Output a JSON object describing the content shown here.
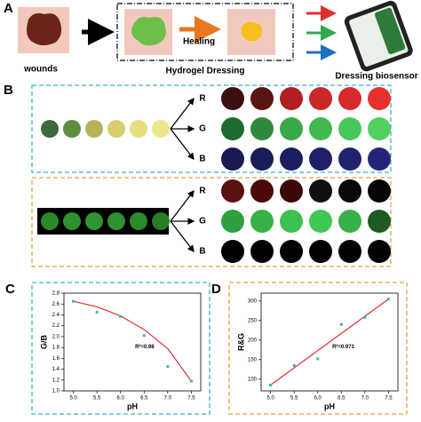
{
  "panel_a": {
    "label": "A",
    "wounds": "wounds",
    "hydrogel": "Hydrogel Dressing",
    "healing": "Healing",
    "biosensor": "Dressing biosensor"
  },
  "panel_b": {
    "label": "B",
    "top": {
      "vials": [
        "#3c6a3a",
        "#5f8c3e",
        "#b7b35a",
        "#d6cf6a",
        "#e5df80",
        "#ece78c"
      ],
      "rows": [
        {
          "label": "R",
          "colors": [
            "#3a1010",
            "#5a1414",
            "#b02020",
            "#c82828",
            "#d82a2a",
            "#e83030"
          ]
        },
        {
          "label": "G",
          "colors": [
            "#1e6a2e",
            "#2e8a3a",
            "#38a848",
            "#40b850",
            "#48c858",
            "#50d060"
          ]
        },
        {
          "label": "B",
          "colors": [
            "#181a50",
            "#1a1c58",
            "#1c1e60",
            "#1e2068",
            "#202270",
            "#242478"
          ]
        }
      ]
    },
    "bottom": {
      "vials": [
        "#2a8a2a",
        "#2e902e",
        "#309430",
        "#2e902e",
        "#2c8c2c",
        "#287e28"
      ],
      "rows": [
        {
          "label": "R",
          "colors": [
            "#5a1010",
            "#4a0a0a",
            "#3a0808",
            "#101010",
            "#080808",
            "#050505"
          ]
        },
        {
          "label": "G",
          "colors": [
            "#2ea040",
            "#38b048",
            "#3cc050",
            "#40c854",
            "#38b048",
            "#1e5a24"
          ]
        },
        {
          "label": "B",
          "colors": [
            "#000000",
            "#000000",
            "#000000",
            "#000000",
            "#000000",
            "#000000"
          ]
        }
      ]
    }
  },
  "chart_data": [
    {
      "type": "scatter",
      "panel": "C",
      "xlabel": "pH",
      "ylabel": "G/B",
      "annotation": "R²=0.98",
      "color": "#3cb8a0",
      "x": [
        5.0,
        5.5,
        6.0,
        6.5,
        7.0,
        7.5
      ],
      "values": [
        2.65,
        2.45,
        2.37,
        2.02,
        1.45,
        1.18
      ],
      "fit": {
        "color": "#e03030",
        "x": [
          5.0,
          5.5,
          6.0,
          6.5,
          7.0,
          7.5
        ],
        "values": [
          2.65,
          2.55,
          2.38,
          2.13,
          1.78,
          1.18
        ]
      },
      "xlim": [
        4.8,
        7.7
      ],
      "ylim": [
        1.0,
        2.8
      ],
      "xticks": [
        {
          "value": 5.0,
          "label": "5.0"
        },
        5.5,
        {
          "value": 6.0,
          "label": "6.0"
        },
        6.5,
        {
          "value": 7.0,
          "label": "7.0"
        },
        7.5
      ],
      "yticks": [
        {
          "value": 1.0,
          "label": "1.0"
        },
        1.2,
        1.4,
        1.6,
        1.8,
        {
          "value": 2.0,
          "label": "2.0"
        },
        2.2,
        2.4,
        2.6,
        2.8
      ]
    },
    {
      "type": "scatter",
      "panel": "D",
      "xlabel": "pH",
      "ylabel": "R&G",
      "annotation": "R²=0.971",
      "color": "#3cb8a0",
      "x": [
        5.0,
        5.5,
        6.0,
        6.5,
        7.0,
        7.5
      ],
      "values": [
        85,
        135,
        152,
        240,
        258,
        305
      ],
      "fit": {
        "color": "#e03030",
        "x": [
          5.0,
          7.5
        ],
        "values": [
          85,
          305
        ]
      },
      "xlim": [
        4.8,
        7.7
      ],
      "ylim": [
        70,
        320
      ],
      "xticks": [
        {
          "value": 5.0,
          "label": "5.0"
        },
        5.5,
        {
          "value": 6.0,
          "label": "6.0"
        },
        6.5,
        {
          "value": 7.0,
          "label": "7.0"
        },
        7.5
      ],
      "yticks": [
        100,
        150,
        200,
        250,
        300
      ]
    }
  ]
}
